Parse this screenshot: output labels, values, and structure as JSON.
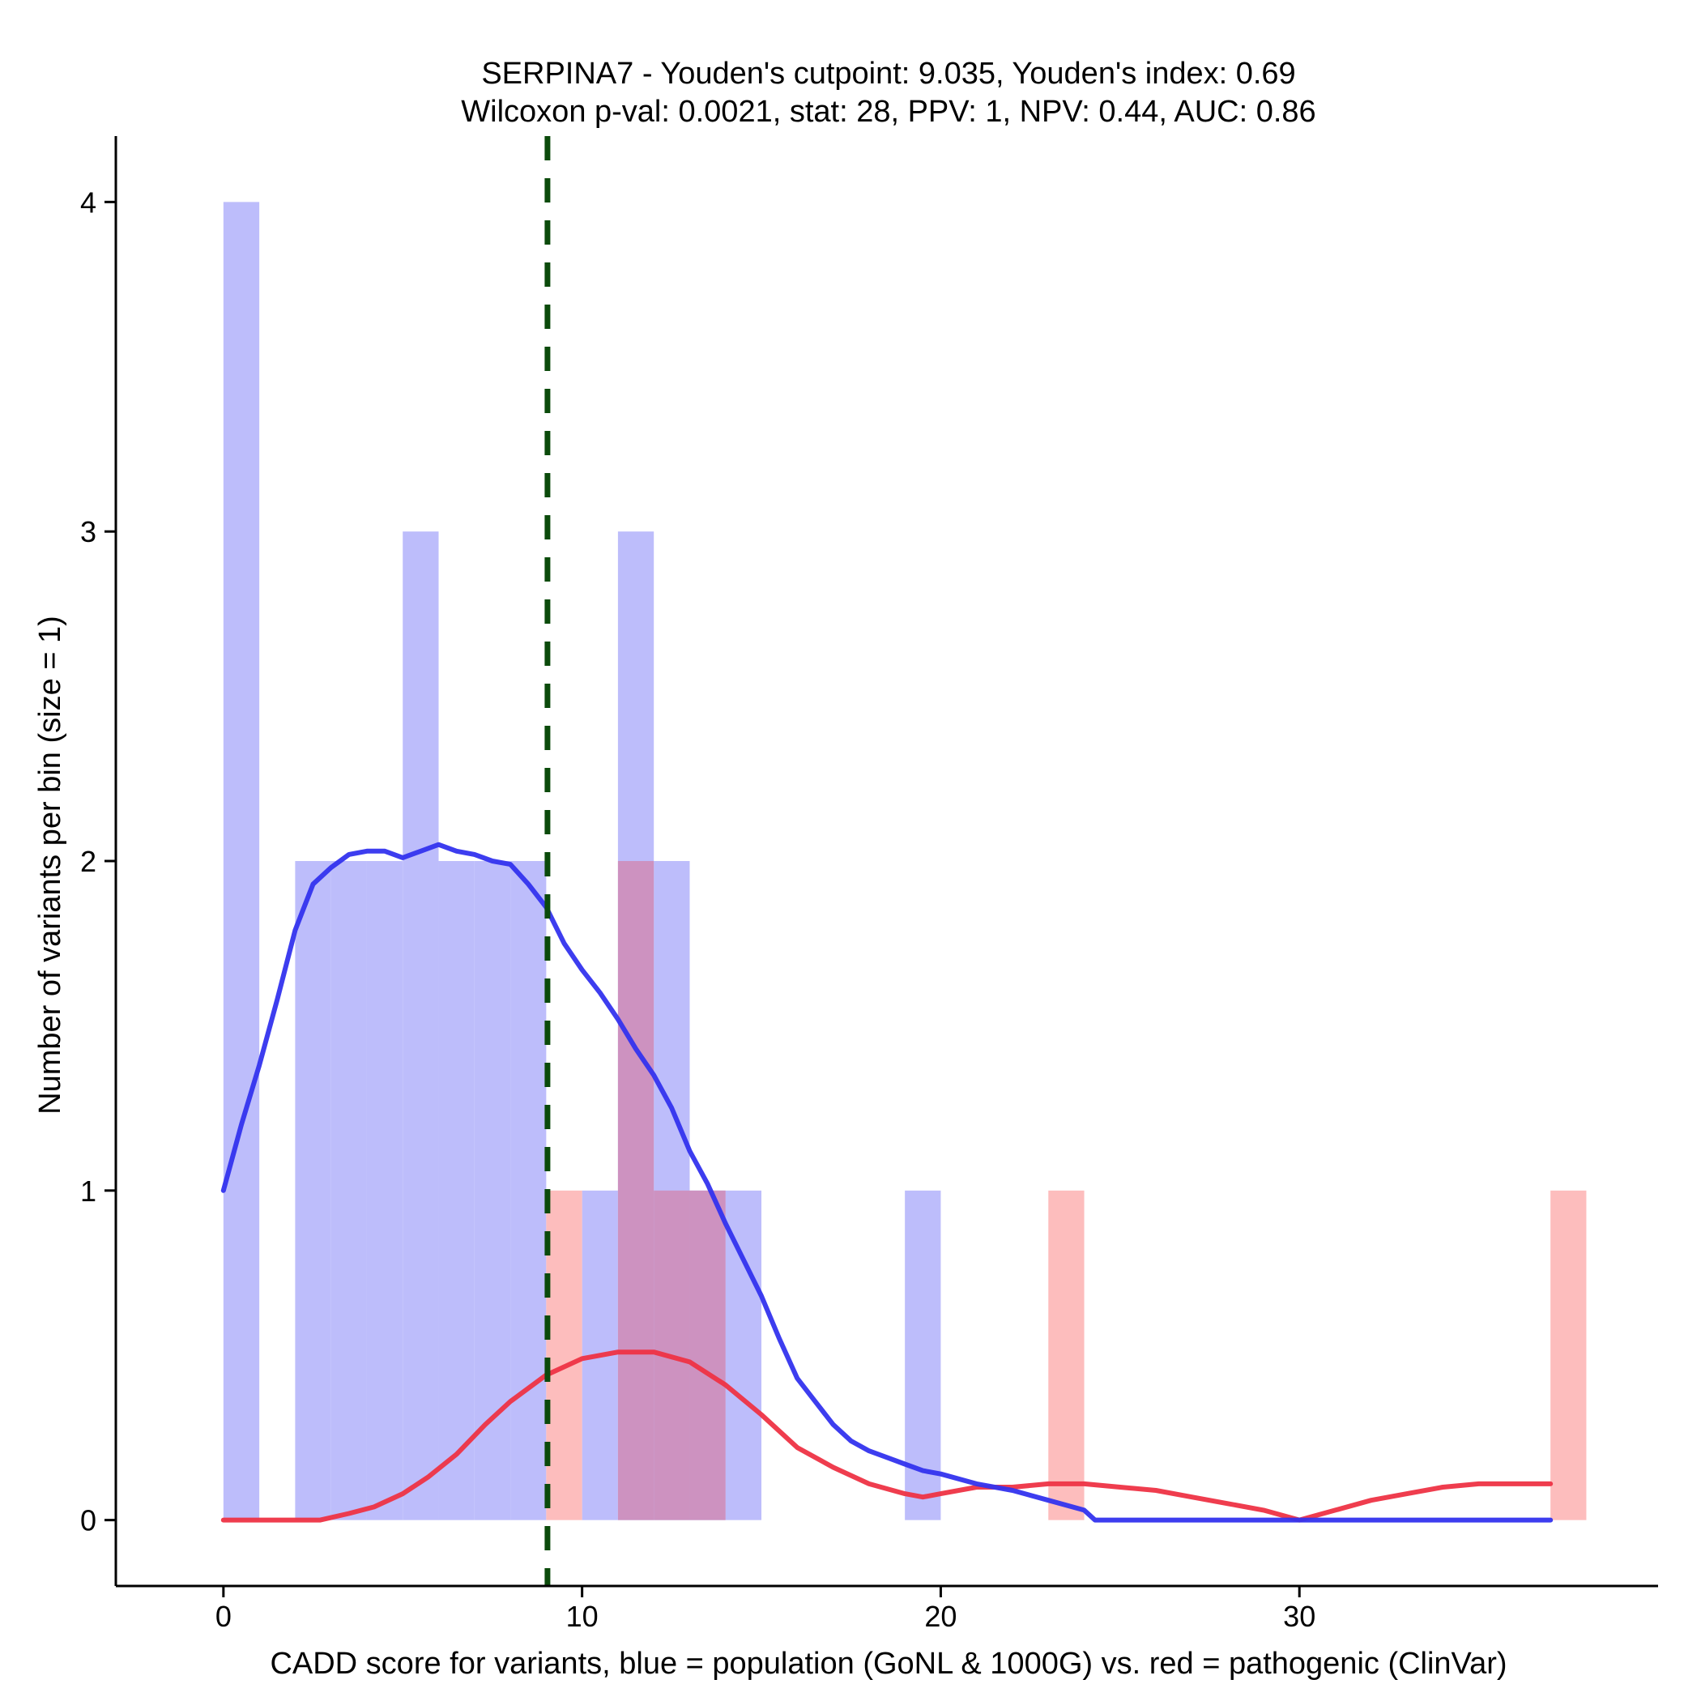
{
  "chart_data": {
    "type": "bar",
    "title_line1": "SERPINA7 - Youden's cutpoint: 9.035, Youden's index: 0.69",
    "title_line2": "Wilcoxon p-val: 0.0021, stat: 28, PPV: 1, NPV: 0.44, AUC: 0.86",
    "xlabel": "CADD score for variants, blue = population (GoNL & 1000G) vs. red = pathogenic (ClinVar)",
    "ylabel": "Number of variants per bin (size = 1)",
    "xlim": [
      -3,
      40
    ],
    "ylim": [
      -0.2,
      4.2
    ],
    "x_ticks": [
      0,
      10,
      20,
      30
    ],
    "y_ticks": [
      0,
      1,
      2,
      3,
      4
    ],
    "bin_width": 1,
    "colors": {
      "population_bar": "#bdbdfb",
      "pathogenic_bar": "#fdbdbd",
      "overlap_bar": "#cd92c0",
      "population_line": "#3333ee",
      "pathogenic_line": "#ee3344",
      "cutpoint_line": "#0b4a0b"
    },
    "cutpoint": 9.035,
    "series": [
      {
        "kind": "histogram",
        "bins": [
          {
            "start": 0,
            "count": 4
          },
          {
            "start": 2,
            "count": 2
          },
          {
            "start": 3,
            "count": 2
          },
          {
            "start": 4,
            "count": 2
          },
          {
            "start": 5,
            "count": 3
          },
          {
            "start": 6,
            "count": 2
          },
          {
            "start": 7,
            "count": 2
          },
          {
            "start": 8,
            "count": 2
          },
          {
            "start": 10,
            "count": 1
          },
          {
            "start": 11,
            "count": 3
          },
          {
            "start": 12,
            "count": 2
          },
          {
            "start": 13,
            "count": 1
          },
          {
            "start": 14,
            "count": 1
          },
          {
            "start": 19,
            "count": 1
          }
        ]
      },
      {
        "kind": "histogram",
        "bins": [
          {
            "start": 9,
            "count": 1
          },
          {
            "start": 11,
            "count": 2
          },
          {
            "start": 12,
            "count": 1
          },
          {
            "start": 13,
            "count": 1
          },
          {
            "start": 23,
            "count": 1
          },
          {
            "start": 37,
            "count": 1
          }
        ]
      },
      {
        "kind": "density",
        "x": [
          0,
          0.5,
          1,
          1.5,
          2,
          2.5,
          3,
          3.5,
          4,
          4.5,
          5,
          5.5,
          6,
          6.5,
          7,
          7.5,
          8,
          8.5,
          9,
          9.5,
          10,
          10.5,
          11,
          11.5,
          12,
          12.5,
          13,
          13.5,
          14,
          14.5,
          15,
          15.5,
          16,
          16.5,
          17,
          17.5,
          18,
          18.5,
          19,
          19.5,
          20,
          21,
          22,
          23,
          24,
          24.3,
          25,
          30,
          37
        ],
        "y": [
          1.0,
          1.2,
          1.38,
          1.58,
          1.79,
          1.93,
          1.98,
          2.02,
          2.03,
          2.03,
          2.01,
          2.03,
          2.05,
          2.03,
          2.02,
          2.0,
          1.99,
          1.93,
          1.86,
          1.75,
          1.67,
          1.6,
          1.52,
          1.43,
          1.35,
          1.25,
          1.12,
          1.02,
          0.9,
          0.79,
          0.68,
          0.55,
          0.43,
          0.36,
          0.29,
          0.24,
          0.21,
          0.19,
          0.17,
          0.15,
          0.14,
          0.11,
          0.09,
          0.06,
          0.03,
          0.0,
          0.0,
          0.0,
          0.0
        ]
      },
      {
        "kind": "density",
        "x": [
          0,
          1,
          2,
          2.7,
          3.5,
          4.2,
          5,
          5.7,
          6.5,
          7.3,
          8,
          9,
          10,
          11,
          12,
          13,
          14,
          15,
          16,
          17,
          18,
          19,
          19.5,
          20,
          21,
          22,
          23,
          24,
          25,
          26,
          27,
          28,
          29,
          30,
          31,
          32,
          33,
          34,
          35,
          36,
          37
        ],
        "y": [
          0.0,
          0.0,
          0.0,
          0.0,
          0.02,
          0.04,
          0.08,
          0.13,
          0.2,
          0.29,
          0.36,
          0.44,
          0.49,
          0.51,
          0.51,
          0.48,
          0.41,
          0.32,
          0.22,
          0.16,
          0.11,
          0.08,
          0.07,
          0.08,
          0.1,
          0.1,
          0.11,
          0.11,
          0.1,
          0.09,
          0.07,
          0.05,
          0.03,
          0.0,
          0.03,
          0.06,
          0.08,
          0.1,
          0.11,
          0.11,
          0.11
        ]
      }
    ]
  }
}
